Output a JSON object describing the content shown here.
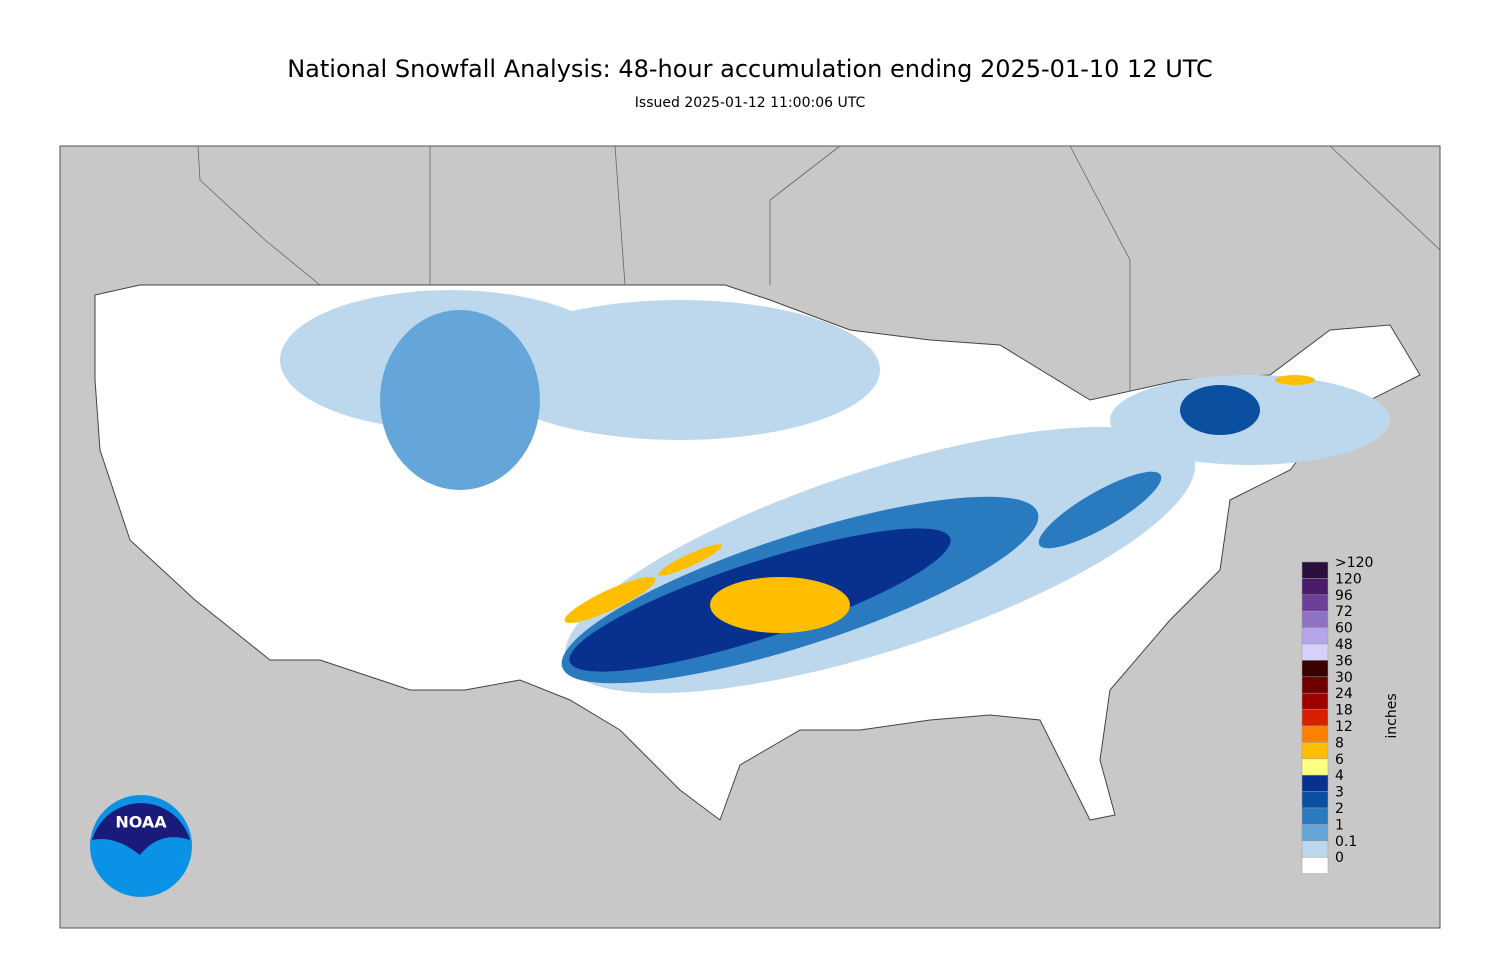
{
  "header": {
    "title": "National Snowfall Analysis: 48-hour accumulation ending 2025-01-10 12 UTC",
    "subtitle": "Issued 2025-01-12 11:00:06 UTC"
  },
  "legend": {
    "unit": "inches",
    "items": [
      {
        "label": ">120",
        "color": "#2b0f3f"
      },
      {
        "label": "120",
        "color": "#4a1d6b"
      },
      {
        "label": "96",
        "color": "#6c4099"
      },
      {
        "label": "72",
        "color": "#8f72c4"
      },
      {
        "label": "60",
        "color": "#b4a6e8"
      },
      {
        "label": "48",
        "color": "#d6d1fa"
      },
      {
        "label": "36",
        "color": "#3b0000"
      },
      {
        "label": "30",
        "color": "#6e0000"
      },
      {
        "label": "24",
        "color": "#a10000"
      },
      {
        "label": "18",
        "color": "#d62000"
      },
      {
        "label": "12",
        "color": "#ff8000"
      },
      {
        "label": "8",
        "color": "#ffbf00"
      },
      {
        "label": "6",
        "color": "#ffff80"
      },
      {
        "label": "4",
        "color": "#08308e"
      },
      {
        "label": "3",
        "color": "#0b4fa0"
      },
      {
        "label": "2",
        "color": "#2a7ac0"
      },
      {
        "label": "1",
        "color": "#64a6da"
      },
      {
        "label": "0.1",
        "color": "#bdd8ec"
      },
      {
        "label": "0",
        "color": "#ffffff"
      }
    ]
  },
  "logo": {
    "text": "NOAA"
  }
}
